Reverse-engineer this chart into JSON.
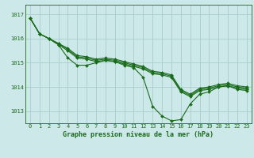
{
  "title": "Graphe pression niveau de la mer (hPa)",
  "bg_color": "#cce8e8",
  "grid_color": "#aacccc",
  "line_color": "#1a6b1a",
  "xlim": [
    -0.5,
    23.5
  ],
  "ylim": [
    1012.5,
    1017.4
  ],
  "yticks": [
    1013,
    1014,
    1015,
    1016,
    1017
  ],
  "xticks": [
    0,
    1,
    2,
    3,
    4,
    5,
    6,
    7,
    8,
    9,
    10,
    11,
    12,
    13,
    14,
    15,
    16,
    17,
    18,
    19,
    20,
    21,
    22,
    23
  ],
  "series": [
    {
      "x": [
        0,
        1,
        2,
        3,
        4,
        5,
        6,
        7,
        8,
        9,
        10,
        11,
        12,
        13,
        14,
        15,
        16,
        17,
        18,
        19,
        20,
        21,
        22,
        23
      ],
      "y": [
        1016.85,
        1016.2,
        1016.0,
        1015.75,
        1015.2,
        1014.9,
        1014.9,
        1015.0,
        1015.1,
        1015.05,
        1014.9,
        1014.8,
        1014.4,
        1013.2,
        1012.8,
        1012.6,
        1012.65,
        1013.3,
        1013.7,
        1013.8,
        1014.0,
        1014.05,
        1013.9,
        1013.85
      ]
    },
    {
      "x": [
        0,
        1,
        2,
        3,
        4,
        5,
        6,
        7,
        8,
        9,
        10,
        11,
        12,
        13,
        14,
        15,
        16,
        17,
        18,
        19,
        20,
        21,
        22,
        23
      ],
      "y": [
        1016.85,
        1016.2,
        1016.0,
        1015.75,
        1015.5,
        1015.2,
        1015.15,
        1015.05,
        1015.1,
        1015.05,
        1014.95,
        1014.85,
        1014.75,
        1014.55,
        1014.5,
        1014.4,
        1013.8,
        1013.6,
        1013.85,
        1013.9,
        1014.0,
        1014.05,
        1013.95,
        1013.9
      ]
    },
    {
      "x": [
        0,
        1,
        2,
        3,
        4,
        5,
        6,
        7,
        8,
        9,
        10,
        11,
        12,
        13,
        14,
        15,
        16,
        17,
        18,
        19,
        20,
        21,
        22,
        23
      ],
      "y": [
        1016.85,
        1016.2,
        1016.0,
        1015.8,
        1015.55,
        1015.25,
        1015.2,
        1015.1,
        1015.15,
        1015.1,
        1015.0,
        1014.9,
        1014.8,
        1014.6,
        1014.55,
        1014.45,
        1013.85,
        1013.65,
        1013.9,
        1013.95,
        1014.05,
        1014.1,
        1014.0,
        1013.95
      ]
    },
    {
      "x": [
        0,
        1,
        2,
        3,
        4,
        5,
        6,
        7,
        8,
        9,
        10,
        11,
        12,
        13,
        14,
        15,
        16,
        17,
        18,
        19,
        20,
        21,
        22,
        23
      ],
      "y": [
        1016.85,
        1016.2,
        1016.0,
        1015.8,
        1015.6,
        1015.3,
        1015.25,
        1015.15,
        1015.2,
        1015.15,
        1015.05,
        1014.95,
        1014.85,
        1014.65,
        1014.6,
        1014.5,
        1013.9,
        1013.7,
        1013.95,
        1014.0,
        1014.1,
        1014.15,
        1014.05,
        1014.0
      ]
    }
  ],
  "marker": "D",
  "markersize": 2.0,
  "linewidth": 0.8,
  "font_color": "#1a6b1a",
  "tick_fontsize": 5.0,
  "label_fontsize": 6.0,
  "label_fontweight": "bold"
}
